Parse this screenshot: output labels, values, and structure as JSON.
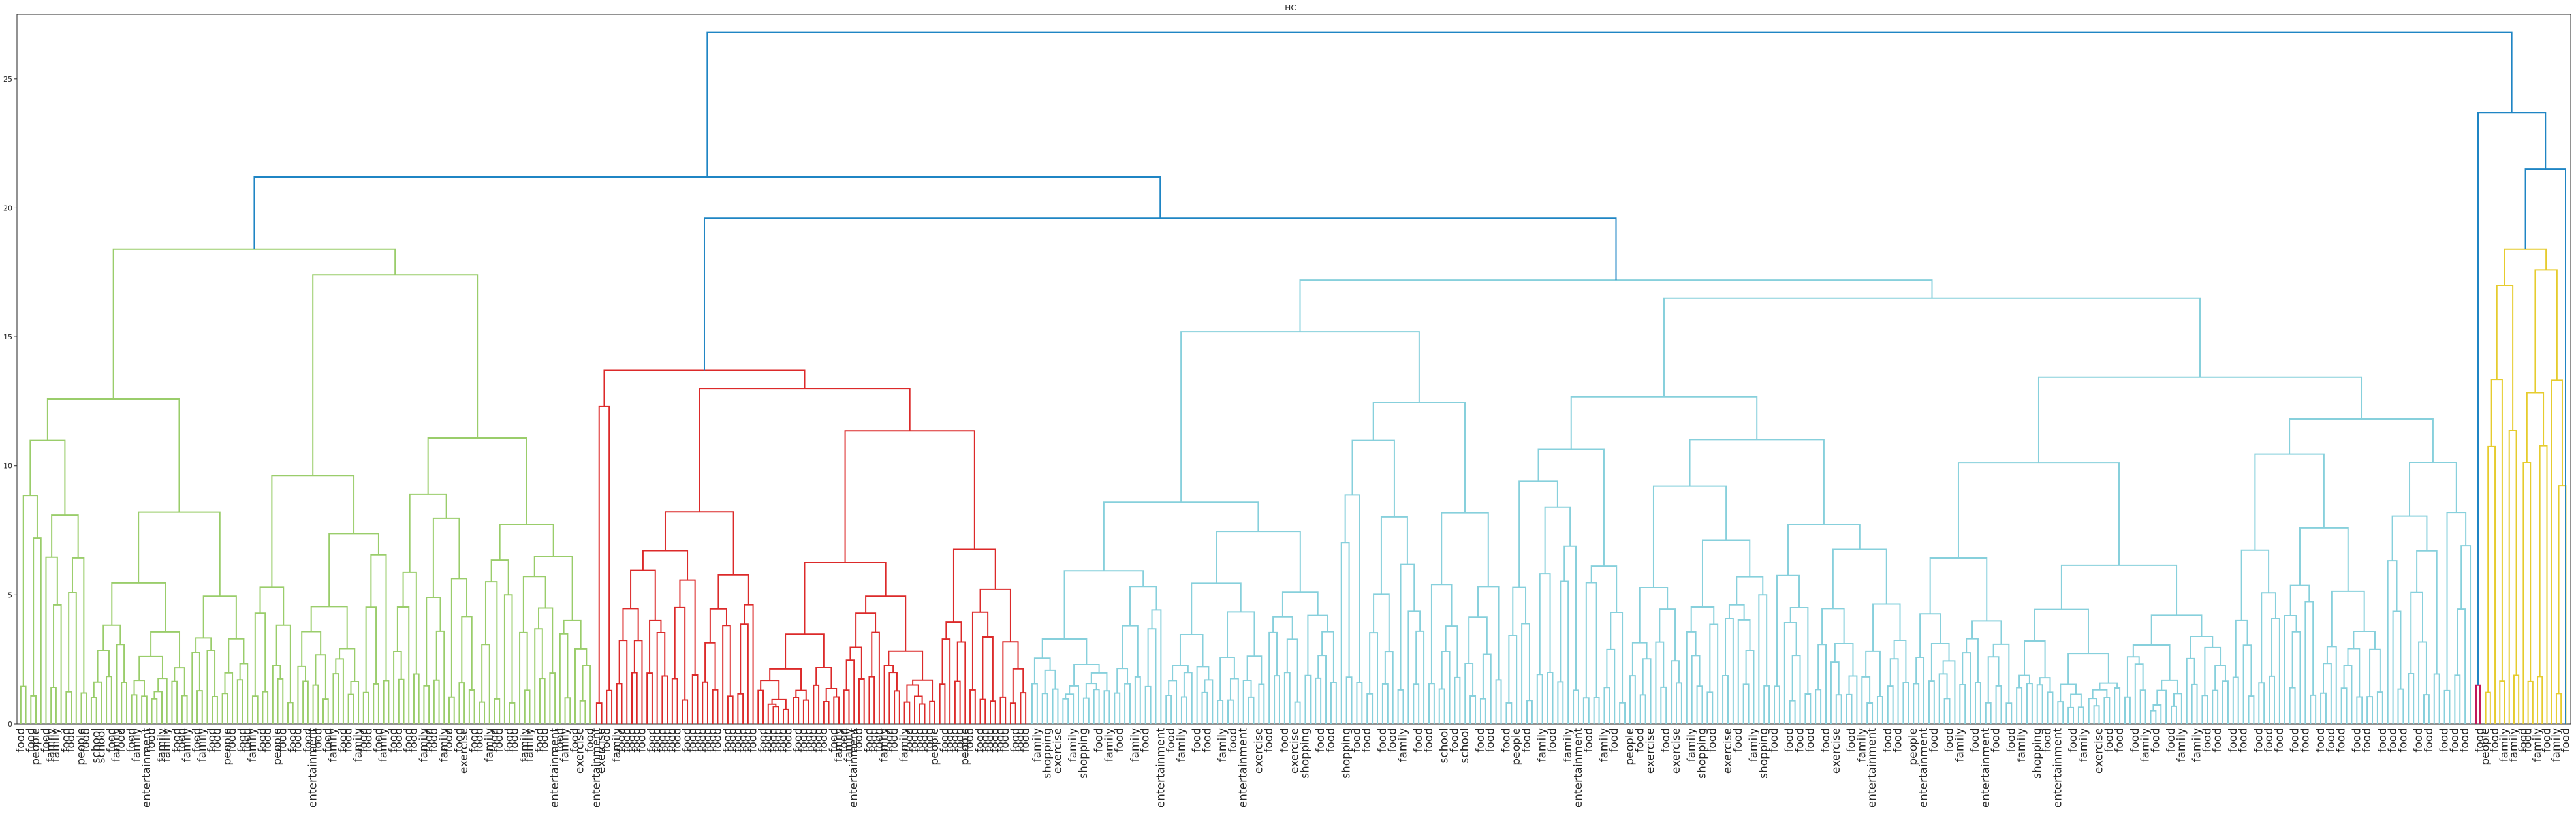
{
  "chart_data": {
    "type": "dendrogram",
    "title": "HC",
    "xlabel": "",
    "ylabel": "",
    "ylim": [
      0,
      27.5
    ],
    "y_ticks": [
      0,
      5,
      10,
      15,
      20,
      25
    ],
    "grid": false,
    "legend": "none",
    "root_merges": [
      {
        "height": 26.8,
        "joins": [
          "main-group",
          "yellow-group"
        ]
      },
      {
        "height": 21.2,
        "joins": [
          "green-cluster",
          "red-and-cyan"
        ]
      },
      {
        "height": 19.6,
        "joins": [
          "red-cluster",
          "cyan-cluster"
        ]
      },
      {
        "height": 23.7,
        "joins": [
          "magenta-cluster",
          "yellow-group"
        ]
      },
      {
        "height": 21.5,
        "joins": [
          "yellow-cluster",
          "yellow-group"
        ]
      }
    ],
    "clusters": [
      {
        "name": "green",
        "color": "#9acd6b",
        "leaf_count": 114,
        "top": 18.4,
        "left_branch": 12.6,
        "right_branch": 17.4
      },
      {
        "name": "red",
        "color": "#dc2a2a",
        "leaf_count": 86,
        "top": 13.7,
        "left_branch": 12.3,
        "right_branch": 13.0
      },
      {
        "name": "cyan",
        "color": "#87d0dc",
        "leaf_count": 280,
        "top": 17.2,
        "left_branch": 15.2,
        "right_branch": 16.5
      },
      {
        "name": "magenta",
        "color": "#c2185b",
        "leaf_count": 2,
        "top": 1.5
      },
      {
        "name": "yellow",
        "color": "#e6cc2e",
        "leaf_count": 18,
        "top": 18.4,
        "left_branch": 17.0,
        "right_branch": 17.6
      }
    ],
    "link_color_above_threshold": "#1f85c4",
    "leaf_labels": {
      "green": [
        "food",
        "food",
        "people",
        "food",
        "family",
        "family",
        "food",
        "food",
        "people",
        "food",
        "school",
        "school",
        "food",
        "family",
        "food",
        "food",
        "family",
        "entertainment",
        "food",
        "family",
        "family",
        "food",
        "food",
        "family",
        "food",
        "family",
        "food",
        "food",
        "people",
        "food",
        "food",
        "food",
        "family",
        "food",
        "food",
        "people",
        "food",
        "food",
        "food",
        "food",
        "entertainment",
        "food",
        "food",
        "family",
        "food",
        "food",
        "family",
        "food",
        "food",
        "food",
        "family",
        "food",
        "food",
        "food",
        "food",
        "family",
        "food",
        "food",
        "family",
        "food",
        "food",
        "exercise",
        "food",
        "food",
        "family",
        "food",
        "food",
        "food",
        "food",
        "family",
        "family",
        "food",
        "food",
        "entertainment",
        "food",
        "family",
        "food",
        "exercise",
        "food"
      ],
      "red": [
        "entertainment",
        "exercise",
        "food",
        "family",
        "food",
        "food",
        "food",
        "food",
        "food",
        "food",
        "food",
        "food",
        "food",
        "food",
        "food",
        "food",
        "food",
        "food",
        "food",
        "food",
        "food",
        "food",
        "food",
        "food",
        "food",
        "food",
        "food",
        "food",
        "food",
        "food",
        "food",
        "food",
        "food",
        "food",
        "food",
        "food",
        "food",
        "food",
        "food",
        "food",
        "food",
        "family",
        "food",
        "family",
        "entertainment",
        "food",
        "food",
        "food",
        "food",
        "family",
        "food",
        "food",
        "family",
        "food",
        "food",
        "food",
        "food",
        "food",
        "people",
        "food",
        "food",
        "food",
        "food",
        "people",
        "food",
        "food",
        "food",
        "food",
        "food",
        "food",
        "food",
        "food",
        "food",
        "food"
      ],
      "cyan": [
        "family",
        "shopping",
        "exercise",
        "family",
        "shopping",
        "food",
        "family",
        "food",
        "family",
        "food",
        "entertainment",
        "food",
        "family",
        "food",
        "food",
        "family",
        "food",
        "entertainment",
        "exercise",
        "food",
        "food",
        "exercise",
        "shopping",
        "food",
        "food",
        "shopping",
        "food",
        "food",
        "food",
        "food",
        "family",
        "food",
        "food",
        "school",
        "food",
        "school",
        "food",
        "food",
        "food",
        "people",
        "food",
        "family",
        "food",
        "family",
        "entertainment",
        "food",
        "family",
        "food",
        "people",
        "food",
        "exercise",
        "food",
        "exercise",
        "family",
        "shopping",
        "food",
        "exercise",
        "food",
        "family",
        "shopping",
        "food",
        "food",
        "food",
        "food",
        "food",
        "exercise",
        "food",
        "family",
        "entertainment",
        "food",
        "food",
        "people",
        "entertainment",
        "food",
        "food",
        "family",
        "food",
        "entertainment",
        "food",
        "food",
        "family",
        "shopping",
        "food",
        "entertainment",
        "food",
        "family",
        "exercise",
        "food",
        "food",
        "food",
        "family",
        "food",
        "food",
        "family",
        "family",
        "food",
        "food",
        "food",
        "food",
        "food",
        "food",
        "food",
        "food",
        "food",
        "food",
        "food",
        "food",
        "food",
        "food",
        "food",
        "food",
        "food",
        "food",
        "food",
        "food",
        "food",
        "food"
      ],
      "magenta": [
        "food"
      ],
      "yellow": [
        "people",
        "food",
        "family",
        "family",
        "food",
        "food",
        "family",
        "food",
        "family",
        "food"
      ]
    }
  }
}
